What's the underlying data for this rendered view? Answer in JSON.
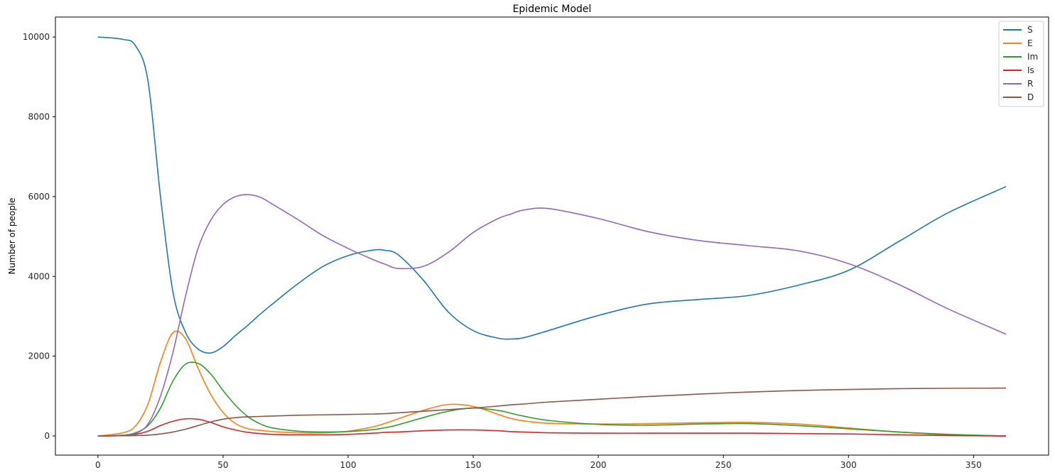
{
  "chart_data": {
    "type": "line",
    "title": "Epidemic Model",
    "xlabel": "",
    "ylabel": "Number of people",
    "xlim": [
      -17,
      380
    ],
    "ylim": [
      -480,
      10500
    ],
    "xticks": [
      0,
      50,
      100,
      150,
      200,
      250,
      300,
      350
    ],
    "yticks": [
      0,
      2000,
      4000,
      6000,
      8000,
      10000
    ],
    "grid": false,
    "legend_position": "top-right",
    "x": [
      0,
      10,
      15,
      20,
      25,
      30,
      35,
      40,
      45,
      50,
      55,
      60,
      65,
      70,
      80,
      90,
      100,
      110,
      115,
      120,
      130,
      140,
      150,
      160,
      165,
      170,
      180,
      200,
      220,
      240,
      260,
      280,
      300,
      320,
      340,
      363
    ],
    "series": [
      {
        "name": "S",
        "color": "#1f77b4",
        "values": [
          10000,
          9940,
          9780,
          8900,
          6000,
          3600,
          2600,
          2180,
          2080,
          2240,
          2520,
          2780,
          3060,
          3320,
          3820,
          4250,
          4520,
          4660,
          4650,
          4540,
          3910,
          3110,
          2640,
          2450,
          2430,
          2460,
          2640,
          3020,
          3310,
          3420,
          3520,
          3780,
          4150,
          4870,
          5600,
          6250
        ]
      },
      {
        "name": "E",
        "color": "#ff7f0e",
        "values": [
          0,
          80,
          250,
          800,
          1850,
          2590,
          2440,
          1700,
          1050,
          590,
          310,
          180,
          140,
          110,
          80,
          80,
          120,
          230,
          320,
          430,
          640,
          790,
          740,
          540,
          440,
          380,
          320,
          300,
          310,
          330,
          340,
          300,
          200,
          100,
          30,
          0
        ]
      },
      {
        "name": "Im",
        "color": "#2ca02c",
        "values": [
          0,
          20,
          80,
          260,
          700,
          1380,
          1800,
          1820,
          1560,
          1140,
          770,
          480,
          300,
          200,
          120,
          100,
          110,
          160,
          210,
          280,
          460,
          620,
          700,
          640,
          570,
          500,
          390,
          290,
          270,
          300,
          310,
          260,
          180,
          100,
          40,
          0
        ]
      },
      {
        "name": "Is",
        "color": "#d62728",
        "values": [
          0,
          10,
          40,
          120,
          260,
          370,
          430,
          420,
          340,
          230,
          150,
          90,
          60,
          40,
          30,
          30,
          40,
          70,
          90,
          100,
          130,
          150,
          150,
          130,
          110,
          100,
          80,
          70,
          70,
          70,
          70,
          60,
          50,
          30,
          10,
          0
        ]
      },
      {
        "name": "R",
        "color": "#9467bd",
        "values": [
          0,
          10,
          60,
          300,
          1000,
          2100,
          3500,
          4700,
          5400,
          5800,
          6000,
          6050,
          5980,
          5800,
          5420,
          5020,
          4700,
          4420,
          4300,
          4200,
          4250,
          4600,
          5100,
          5450,
          5560,
          5660,
          5700,
          5450,
          5120,
          4900,
          4770,
          4640,
          4320,
          3800,
          3180,
          2550
        ]
      },
      {
        "name": "D",
        "color": "#8c564b",
        "values": [
          0,
          5,
          10,
          20,
          50,
          100,
          170,
          260,
          350,
          420,
          460,
          480,
          490,
          500,
          520,
          530,
          540,
          550,
          560,
          580,
          620,
          660,
          700,
          750,
          780,
          800,
          850,
          920,
          990,
          1050,
          1100,
          1140,
          1165,
          1185,
          1195,
          1200
        ]
      }
    ]
  }
}
